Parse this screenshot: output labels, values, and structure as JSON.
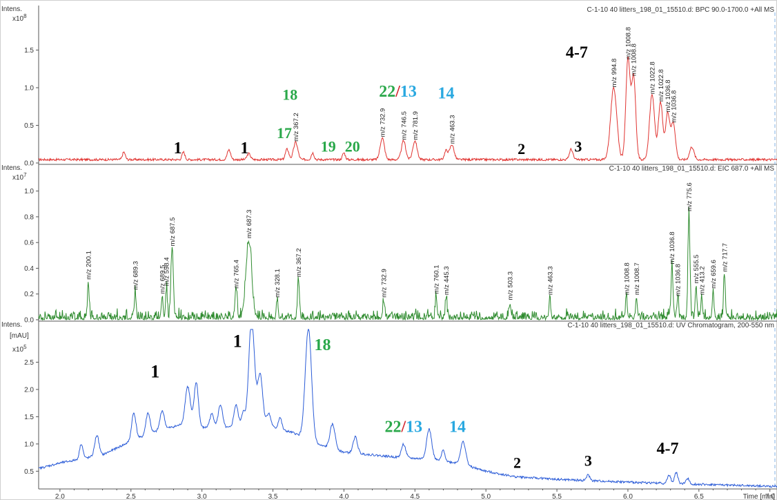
{
  "chart_data": [
    {
      "type": "line",
      "panel": "bpc",
      "header": "C-1-10 40 litters_198_01_15510.d: BPC 90.0-1700.0 +All MS",
      "ylabel": "Intens.",
      "yexp": "x10",
      "yexp_power": "8",
      "ylim": [
        0,
        2.0
      ],
      "yticks": [
        "0.0",
        "0.5",
        "1.0",
        "1.5"
      ],
      "ytick_values": [
        0,
        0.5,
        1.0,
        1.5
      ],
      "color": "#e0322f",
      "baseline": 0.05,
      "peaks": [
        {
          "x": 2.45,
          "y": 0.1,
          "w": 0.01
        },
        {
          "x": 2.87,
          "y": 0.1,
          "w": 0.01
        },
        {
          "x": 3.19,
          "y": 0.13,
          "w": 0.012
        },
        {
          "x": 3.33,
          "y": 0.08,
          "w": 0.012
        },
        {
          "x": 3.6,
          "y": 0.14,
          "w": 0.012
        },
        {
          "x": 3.66,
          "y": 0.23,
          "w": 0.015
        },
        {
          "x": 3.78,
          "y": 0.09,
          "w": 0.01
        },
        {
          "x": 4.0,
          "y": 0.09,
          "w": 0.01
        },
        {
          "x": 4.27,
          "y": 0.29,
          "w": 0.015
        },
        {
          "x": 4.42,
          "y": 0.25,
          "w": 0.015
        },
        {
          "x": 4.5,
          "y": 0.25,
          "w": 0.015
        },
        {
          "x": 4.72,
          "y": 0.12,
          "w": 0.012
        },
        {
          "x": 4.76,
          "y": 0.2,
          "w": 0.015
        },
        {
          "x": 5.6,
          "y": 0.14,
          "w": 0.012
        },
        {
          "x": 5.9,
          "y": 0.95,
          "w": 0.022
        },
        {
          "x": 6.0,
          "y": 1.32,
          "w": 0.015
        },
        {
          "x": 6.04,
          "y": 1.1,
          "w": 0.015
        },
        {
          "x": 6.17,
          "y": 0.86,
          "w": 0.018
        },
        {
          "x": 6.23,
          "y": 0.76,
          "w": 0.015
        },
        {
          "x": 6.28,
          "y": 0.62,
          "w": 0.015
        },
        {
          "x": 6.32,
          "y": 0.48,
          "w": 0.015
        },
        {
          "x": 6.45,
          "y": 0.17,
          "w": 0.015
        }
      ],
      "annotations": [
        {
          "text": "m/z 367.2",
          "x": 3.66,
          "y": 0.23
        },
        {
          "text": "m/z 732.9",
          "x": 4.27,
          "y": 0.29
        },
        {
          "text": "m/z 746.5",
          "x": 4.42,
          "y": 0.25
        },
        {
          "text": "m/z 781.9",
          "x": 4.5,
          "y": 0.25
        },
        {
          "text": "m/z 463.3",
          "x": 4.76,
          "y": 0.2
        },
        {
          "text": "m/z 994.8",
          "x": 5.9,
          "y": 0.95
        },
        {
          "text": "m/z 1008.8",
          "x": 6.0,
          "y": 1.32
        },
        {
          "text": "m/z 1008.8",
          "x": 6.04,
          "y": 1.1
        },
        {
          "text": "m/z 1022.8",
          "x": 6.17,
          "y": 0.86
        },
        {
          "text": "m/z 1022.8",
          "x": 6.23,
          "y": 0.76
        },
        {
          "text": "m/z 1036.8",
          "x": 6.28,
          "y": 0.62
        },
        {
          "text": "m/z 1036.8",
          "x": 6.32,
          "y": 0.48
        }
      ],
      "labels": [
        {
          "text": "1",
          "x": 2.83,
          "y": 0.13,
          "color": "#000000",
          "size": 24
        },
        {
          "text": "1",
          "x": 3.3,
          "y": 0.13,
          "color": "#000000",
          "size": 24
        },
        {
          "text": "17",
          "x": 3.58,
          "y": 0.33,
          "color": "#2aa84a",
          "size": 22
        },
        {
          "text": "18",
          "x": 3.62,
          "y": 0.84,
          "color": "#2aa84a",
          "size": 22
        },
        {
          "text": "19",
          "x": 3.89,
          "y": 0.15,
          "color": "#2aa84a",
          "size": 22
        },
        {
          "text": "20",
          "x": 4.06,
          "y": 0.15,
          "color": "#2aa84a",
          "size": 22
        },
        {
          "text": "2",
          "x": 5.25,
          "y": 0.12,
          "color": "#000000",
          "size": 22
        },
        {
          "text": "3",
          "x": 5.65,
          "y": 0.15,
          "color": "#000000",
          "size": 22
        },
        {
          "text": "4-7",
          "x": 5.64,
          "y": 1.4,
          "color": "#000000",
          "size": 24
        },
        {
          "text": "14",
          "x": 4.72,
          "y": 0.86,
          "color": "#29a8e0",
          "size": 24
        }
      ],
      "split_labels": [
        {
          "parts": [
            "22",
            "/",
            "13"
          ],
          "colors": [
            "#2aa84a",
            "#d2262e",
            "#29a8e0"
          ],
          "x": 4.38,
          "y": 0.88,
          "size": 24
        }
      ]
    },
    {
      "type": "line",
      "panel": "eic",
      "header": "C-1-10 40 litters_198_01_15510.d: EIC 687.0 +All MS",
      "ylabel": "Intens.",
      "yexp": "x10",
      "yexp_power": "7",
      "ylim": [
        0,
        1.1
      ],
      "yticks": [
        "0.0",
        "0.2",
        "0.4",
        "0.6",
        "0.8",
        "1.0"
      ],
      "ytick_values": [
        0,
        0.2,
        0.4,
        0.6,
        0.8,
        1.0
      ],
      "color": "#2e8b2e",
      "baseline": 0.03,
      "peaks": [
        {
          "x": 2.2,
          "y": 0.28,
          "w": 0.006
        },
        {
          "x": 2.53,
          "y": 0.2,
          "w": 0.006
        },
        {
          "x": 2.72,
          "y": 0.17,
          "w": 0.006
        },
        {
          "x": 2.75,
          "y": 0.23,
          "w": 0.006
        },
        {
          "x": 2.79,
          "y": 0.54,
          "w": 0.008
        },
        {
          "x": 3.24,
          "y": 0.21,
          "w": 0.008
        },
        {
          "x": 3.33,
          "y": 0.6,
          "w": 0.02
        },
        {
          "x": 3.53,
          "y": 0.14,
          "w": 0.006
        },
        {
          "x": 3.68,
          "y": 0.3,
          "w": 0.007
        },
        {
          "x": 4.28,
          "y": 0.14,
          "w": 0.006
        },
        {
          "x": 4.65,
          "y": 0.17,
          "w": 0.006
        },
        {
          "x": 4.72,
          "y": 0.16,
          "w": 0.006
        },
        {
          "x": 5.17,
          "y": 0.12,
          "w": 0.006
        },
        {
          "x": 5.45,
          "y": 0.16,
          "w": 0.006
        },
        {
          "x": 5.99,
          "y": 0.16,
          "w": 0.006
        },
        {
          "x": 6.06,
          "y": 0.16,
          "w": 0.006
        },
        {
          "x": 6.31,
          "y": 0.4,
          "w": 0.006
        },
        {
          "x": 6.35,
          "y": 0.15,
          "w": 0.006
        },
        {
          "x": 6.43,
          "y": 0.81,
          "w": 0.007
        },
        {
          "x": 6.48,
          "y": 0.25,
          "w": 0.006
        },
        {
          "x": 6.52,
          "y": 0.16,
          "w": 0.006
        },
        {
          "x": 6.6,
          "y": 0.21,
          "w": 0.006
        },
        {
          "x": 6.68,
          "y": 0.34,
          "w": 0.006
        }
      ],
      "annotations": [
        {
          "text": "m/z 200.1",
          "x": 2.2,
          "y": 0.28
        },
        {
          "text": "m/z 689.3",
          "x": 2.53,
          "y": 0.2
        },
        {
          "text": "m/z 689.5",
          "x": 2.72,
          "y": 0.17
        },
        {
          "text": "m/z 598.4",
          "x": 2.75,
          "y": 0.23
        },
        {
          "text": "m/z 687.5",
          "x": 2.79,
          "y": 0.54
        },
        {
          "text": "m/z 765.4",
          "x": 3.24,
          "y": 0.21
        },
        {
          "text": "m/z 687.3",
          "x": 3.33,
          "y": 0.6
        },
        {
          "text": "m/z 328.1",
          "x": 3.53,
          "y": 0.14
        },
        {
          "text": "m/z 367.2",
          "x": 3.68,
          "y": 0.3
        },
        {
          "text": "m/z 732.9",
          "x": 4.28,
          "y": 0.14
        },
        {
          "text": "m/z 760.1",
          "x": 4.65,
          "y": 0.17
        },
        {
          "text": "m/z 445.3",
          "x": 4.72,
          "y": 0.16
        },
        {
          "text": "m/z 503.3",
          "x": 5.17,
          "y": 0.12
        },
        {
          "text": "m/z 463.3",
          "x": 5.45,
          "y": 0.16
        },
        {
          "text": "m/z 1008.8",
          "x": 5.99,
          "y": 0.16
        },
        {
          "text": "m/z 1008.7",
          "x": 6.06,
          "y": 0.16
        },
        {
          "text": "m/z 1036.8",
          "x": 6.31,
          "y": 0.4
        },
        {
          "text": "m/z 1036.8",
          "x": 6.35,
          "y": 0.15
        },
        {
          "text": "m/z 775.6",
          "x": 6.43,
          "y": 0.81
        },
        {
          "text": "m/z 555.5",
          "x": 6.48,
          "y": 0.25
        },
        {
          "text": "m/z 413.2",
          "x": 6.52,
          "y": 0.16
        },
        {
          "text": "m/z 659.6",
          "x": 6.6,
          "y": 0.21
        },
        {
          "text": "m/z 717.7",
          "x": 6.68,
          "y": 0.34
        }
      ],
      "labels": [],
      "split_labels": []
    },
    {
      "type": "line",
      "panel": "uv",
      "header": "C-1-10 40 litters_198_01_15510.d: UV Chromatogram, 200-550 nm",
      "ylabel": "Intens.",
      "yunit": "[mAU]",
      "yexp": "x10",
      "yexp_power": "5",
      "ylim": [
        0.2,
        3.0
      ],
      "yticks": [
        "0.5",
        "1.0",
        "1.5",
        "2.0",
        "2.5"
      ],
      "ytick_values": [
        0.5,
        1.0,
        1.5,
        2.0,
        2.5
      ],
      "color": "#2a5bd7",
      "xlabel": "Time [min]",
      "xlim": [
        1.85,
        7.05
      ],
      "xticks": [
        "2.0",
        "2.5",
        "3.0",
        "3.5",
        "4.0",
        "4.5",
        "5.0",
        "5.5",
        "6.0",
        "6.5",
        "7.0"
      ],
      "xtick_values": [
        2.0,
        2.5,
        3.0,
        3.5,
        4.0,
        4.5,
        5.0,
        5.5,
        6.0,
        6.5,
        7.0
      ],
      "baseline_points": [
        [
          1.85,
          0.55
        ],
        [
          2.0,
          0.65
        ],
        [
          2.3,
          0.8
        ],
        [
          2.5,
          1.05
        ],
        [
          2.7,
          1.25
        ],
        [
          2.85,
          1.35
        ],
        [
          3.0,
          1.3
        ],
        [
          3.2,
          1.3
        ],
        [
          3.35,
          1.35
        ],
        [
          3.5,
          1.3
        ],
        [
          3.65,
          1.2
        ],
        [
          3.8,
          1.0
        ],
        [
          4.0,
          0.85
        ],
        [
          4.2,
          0.8
        ],
        [
          4.4,
          0.75
        ],
        [
          4.6,
          0.72
        ],
        [
          4.8,
          0.65
        ],
        [
          5.0,
          0.5
        ],
        [
          5.2,
          0.4
        ],
        [
          5.5,
          0.35
        ],
        [
          6.0,
          0.3
        ],
        [
          6.5,
          0.26
        ],
        [
          7.05,
          0.22
        ]
      ],
      "peaks": [
        {
          "x": 2.15,
          "y": 0.28,
          "w": 0.012
        },
        {
          "x": 2.26,
          "y": 0.38,
          "w": 0.015
        },
        {
          "x": 2.52,
          "y": 0.5,
          "w": 0.015
        },
        {
          "x": 2.62,
          "y": 0.4,
          "w": 0.015
        },
        {
          "x": 2.72,
          "y": 0.35,
          "w": 0.015
        },
        {
          "x": 2.9,
          "y": 0.72,
          "w": 0.018
        },
        {
          "x": 2.96,
          "y": 0.82,
          "w": 0.015
        },
        {
          "x": 3.07,
          "y": 0.25,
          "w": 0.015
        },
        {
          "x": 3.13,
          "y": 0.42,
          "w": 0.015
        },
        {
          "x": 3.24,
          "y": 0.4,
          "w": 0.015
        },
        {
          "x": 3.29,
          "y": 0.25,
          "w": 0.012
        },
        {
          "x": 3.35,
          "y": 1.95,
          "w": 0.02
        },
        {
          "x": 3.41,
          "y": 0.95,
          "w": 0.018
        },
        {
          "x": 3.47,
          "y": 0.25,
          "w": 0.015
        },
        {
          "x": 3.55,
          "y": 0.22,
          "w": 0.012
        },
        {
          "x": 3.75,
          "y": 2.05,
          "w": 0.022
        },
        {
          "x": 3.92,
          "y": 0.45,
          "w": 0.018
        },
        {
          "x": 4.08,
          "y": 0.3,
          "w": 0.015
        },
        {
          "x": 4.42,
          "y": 0.25,
          "w": 0.015
        },
        {
          "x": 4.6,
          "y": 0.55,
          "w": 0.018
        },
        {
          "x": 4.7,
          "y": 0.2,
          "w": 0.012
        },
        {
          "x": 4.84,
          "y": 0.42,
          "w": 0.018
        },
        {
          "x": 5.72,
          "y": 0.1,
          "w": 0.012
        },
        {
          "x": 6.29,
          "y": 0.15,
          "w": 0.012
        },
        {
          "x": 6.34,
          "y": 0.2,
          "w": 0.012
        },
        {
          "x": 6.42,
          "y": 0.1,
          "w": 0.012
        }
      ],
      "annotations": [],
      "labels": [
        {
          "text": "1",
          "x": 2.67,
          "y": 2.22,
          "color": "#000000",
          "size": 26
        },
        {
          "text": "1",
          "x": 3.25,
          "y": 2.78,
          "color": "#000000",
          "size": 26
        },
        {
          "text": "18",
          "x": 3.85,
          "y": 2.72,
          "color": "#2aa84a",
          "size": 24
        },
        {
          "text": "14",
          "x": 4.8,
          "y": 1.22,
          "color": "#29a8e0",
          "size": 24
        },
        {
          "text": "2",
          "x": 5.22,
          "y": 0.56,
          "color": "#000000",
          "size": 22
        },
        {
          "text": "3",
          "x": 5.72,
          "y": 0.6,
          "color": "#000000",
          "size": 22
        },
        {
          "text": "4-7",
          "x": 6.28,
          "y": 0.82,
          "color": "#000000",
          "size": 24
        }
      ],
      "split_labels": [
        {
          "parts": [
            "22",
            "/",
            "13"
          ],
          "colors": [
            "#2aa84a",
            "#d2262e",
            "#29a8e0"
          ],
          "x": 4.42,
          "y": 1.22,
          "size": 24
        }
      ]
    }
  ]
}
